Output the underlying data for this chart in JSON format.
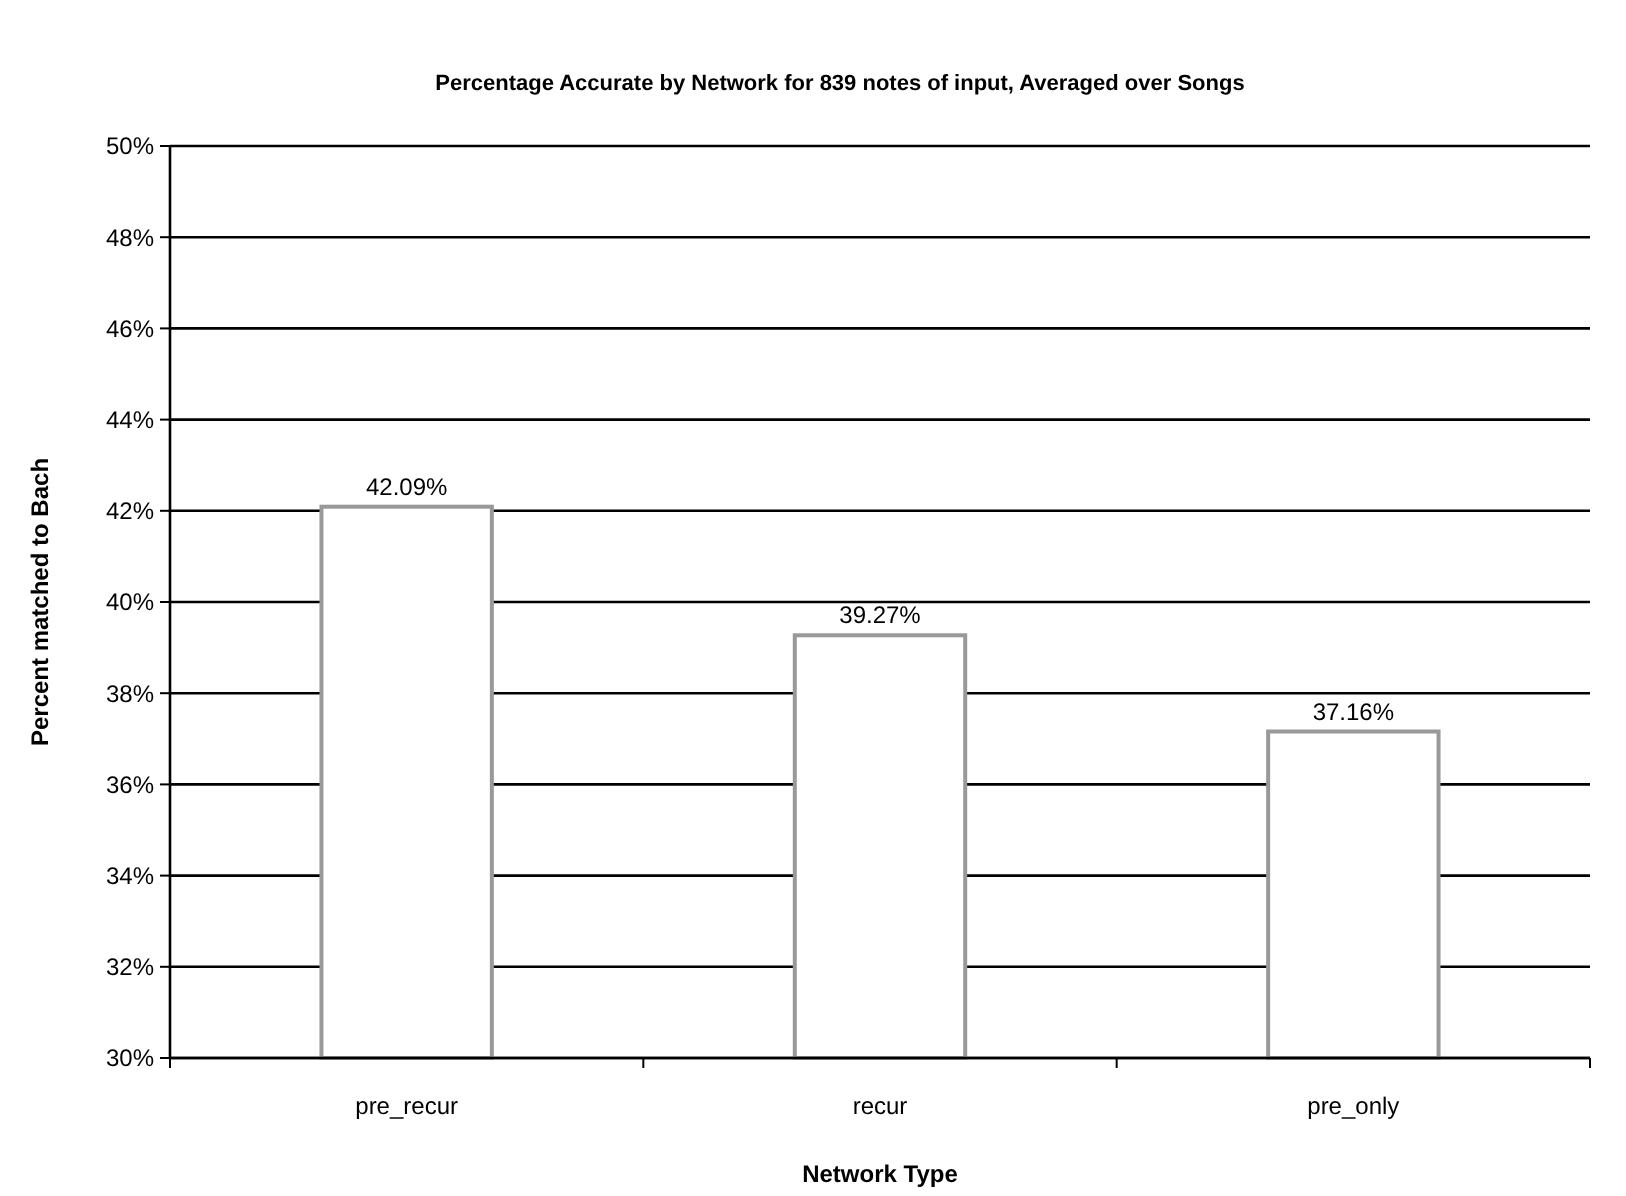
{
  "chart_data": {
    "type": "bar",
    "title": "Percentage Accurate by Network for 839 notes of input, Averaged over Songs",
    "xlabel": "Network Type",
    "ylabel": "Percent matched to Bach",
    "categories": [
      "pre_recur",
      "recur",
      "pre_only"
    ],
    "values": [
      42.09,
      39.27,
      37.16
    ],
    "value_labels": [
      "42.09%",
      "39.27%",
      "37.16%"
    ],
    "color": "#ffffff",
    "ylim": [
      30,
      50
    ],
    "yticks": [
      {
        "value": 30,
        "label": "30%"
      },
      {
        "value": 32,
        "label": "32%"
      },
      {
        "value": 34,
        "label": "34%"
      },
      {
        "value": 36,
        "label": "36%"
      },
      {
        "value": 38,
        "label": "38%"
      },
      {
        "value": 40,
        "label": "40%"
      },
      {
        "value": 42,
        "label": "42%"
      },
      {
        "value": 44,
        "label": "44%"
      },
      {
        "value": 46,
        "label": "46%"
      },
      {
        "value": 48,
        "label": "48%"
      },
      {
        "value": 50,
        "label": "50%"
      }
    ],
    "grid": "y"
  }
}
